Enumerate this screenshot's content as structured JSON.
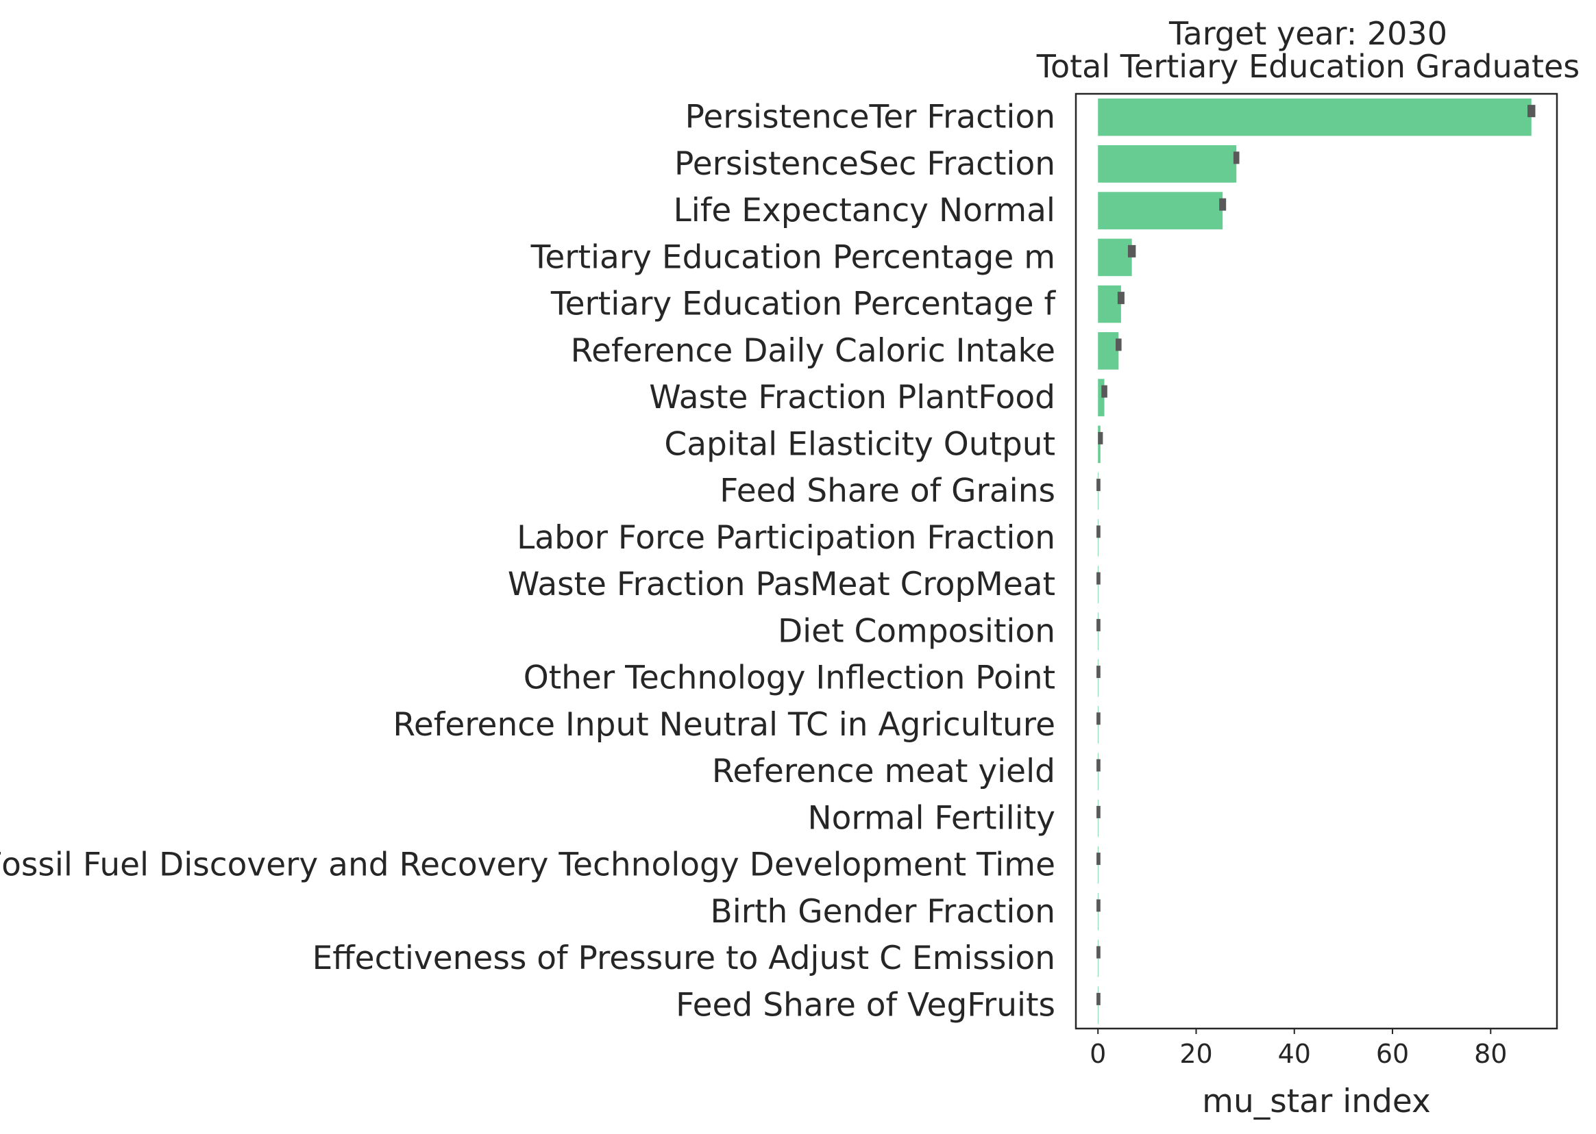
{
  "chart_data": {
    "type": "bar",
    "orientation": "horizontal",
    "title": "Target year: 2030",
    "subtitle": "Total Tertiary Education Graduates",
    "xlabel": "mu_star index",
    "ylabel": "",
    "xlim": [
      -4.5,
      93.5
    ],
    "xticks": [
      0,
      20,
      40,
      60,
      80
    ],
    "grid": false,
    "bar_color": "#66cc91",
    "error_color": "#595959",
    "categories": [
      "PersistenceTer Fraction",
      "PersistenceSec Fraction",
      "Life Expectancy Normal",
      "Tertiary Education Percentage m",
      "Tertiary Education Percentage f",
      "Reference Daily Caloric Intake",
      "Waste Fraction PlantFood",
      "Capital Elasticity Output",
      "Feed Share of Grains",
      "Labor Force Participation Fraction",
      "Waste Fraction PasMeat CropMeat",
      "Diet Composition",
      "Other Technology Inflection Point",
      "Reference Input Neutral TC in Agriculture",
      "Reference meat yield",
      "Normal Fertility",
      "Fossil Fuel Discovery and Recovery Technology Development Time",
      "Birth Gender Fraction",
      "Effectiveness of Pressure to Adjust C Emission",
      "Feed Share of VegFruits"
    ],
    "values": [
      88.3,
      28.2,
      25.4,
      6.9,
      4.7,
      4.2,
      1.3,
      0.5,
      0.1,
      0.1,
      0.1,
      0.1,
      0.1,
      0.1,
      0.1,
      0.1,
      0.1,
      0.1,
      0.1,
      0.1
    ],
    "errors": [
      0.8,
      0.6,
      0.7,
      0.8,
      0.7,
      0.6,
      0.6,
      0.5,
      0.4,
      0.4,
      0.4,
      0.4,
      0.4,
      0.4,
      0.4,
      0.4,
      0.4,
      0.4,
      0.4,
      0.4
    ]
  }
}
